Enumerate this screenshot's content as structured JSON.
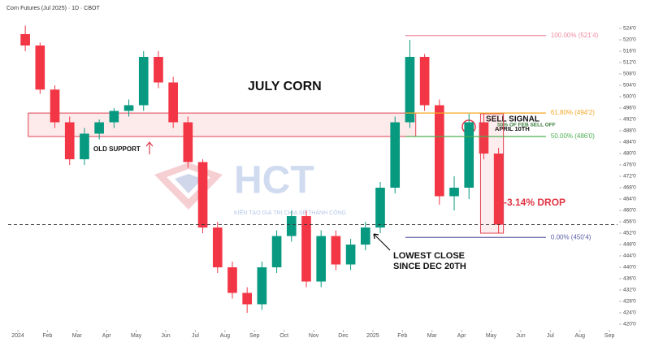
{
  "chart_data": {
    "type": "candlestick",
    "header": "Corn Futures (Jul 2025) · 1D · CBOT",
    "title": "JULY CORN",
    "annotations": {
      "old_support": "OLD SUPPORT",
      "sell_signal": "SELL SIGNAL",
      "sell_date": "APRIL 10TH",
      "fib_note": "50% OF FEB SELL OFF",
      "drop": "-3.14% DROP",
      "lowest_1": "LOWEST CLOSE",
      "lowest_2": "SINCE DEC 20TH"
    },
    "watermark": {
      "brand": "HCT",
      "slogan": "KIẾN TẠO GIÁ TRỊ CHIA SẺ THÀNH CÔNG"
    },
    "x": [
      0.25,
      0.75,
      1.25,
      1.75,
      2.25,
      2.75,
      3.25,
      3.75,
      4.25,
      4.75,
      5.25,
      5.75,
      6.25,
      6.75,
      7.25,
      7.75,
      8.25,
      8.75,
      9.25,
      9.75,
      10.25,
      10.75,
      11.25,
      11.75,
      12.25,
      12.75,
      13.25,
      13.75,
      14.25,
      14.75,
      15.25,
      15.75,
      16.25
    ],
    "open": [
      522,
      518,
      502.5,
      491,
      478,
      487,
      491,
      495,
      497,
      514,
      505,
      491,
      477,
      454,
      440,
      431,
      427,
      440,
      451,
      458,
      435,
      451,
      441,
      448,
      454,
      468,
      491,
      514,
      497,
      465,
      468,
      491,
      480
    ],
    "high": [
      525,
      519,
      504,
      493,
      489,
      492,
      496,
      499,
      516,
      516,
      507,
      493,
      478,
      456,
      442,
      433,
      442,
      453,
      460,
      460,
      453,
      453,
      450,
      456,
      470,
      493,
      520,
      515,
      499,
      472,
      494,
      494,
      482
    ],
    "low": [
      516,
      501,
      489,
      476,
      476,
      485,
      489,
      493,
      495,
      503,
      489,
      475,
      452,
      438,
      429,
      424,
      425,
      438,
      449,
      433,
      433,
      439,
      439,
      446,
      452,
      466,
      489,
      495,
      462,
      460,
      464,
      478,
      452
    ],
    "close": [
      518,
      502.5,
      491,
      478,
      487,
      491,
      495,
      497,
      514,
      505,
      491,
      477,
      454,
      440,
      431,
      427,
      440,
      451,
      458,
      435,
      451,
      441,
      448,
      454,
      468,
      491,
      514,
      497,
      465,
      468,
      491,
      480,
      455
    ],
    "up_color": "#089981",
    "down_color": "#f23645",
    "xlim": [
      -0.33,
      20.27
    ],
    "xticks": [
      {
        "value": 0,
        "label": "2024"
      },
      {
        "value": 1,
        "label": "Feb"
      },
      {
        "value": 2,
        "label": "Mar"
      },
      {
        "value": 3,
        "label": "Apr"
      },
      {
        "value": 4,
        "label": "May"
      },
      {
        "value": 5,
        "label": "Jun"
      },
      {
        "value": 6,
        "label": "Jul"
      },
      {
        "value": 7,
        "label": "Aug"
      },
      {
        "value": 8,
        "label": "Sep"
      },
      {
        "value": 9,
        "label": "Oct"
      },
      {
        "value": 10,
        "label": "Nov"
      },
      {
        "value": 11,
        "label": "Dec"
      },
      {
        "value": 12,
        "label": "2025"
      },
      {
        "value": 13,
        "label": "Feb"
      },
      {
        "value": 14,
        "label": "Mar"
      },
      {
        "value": 15,
        "label": "Apr"
      },
      {
        "value": 16,
        "label": "May"
      },
      {
        "value": 17,
        "label": "Jun"
      },
      {
        "value": 18,
        "label": "Jul"
      },
      {
        "value": 19,
        "label": "Aug"
      },
      {
        "value": 20,
        "label": "Sep"
      }
    ],
    "ylim": [
      418,
      526
    ],
    "yticks": [
      {
        "value": 420,
        "label": "420'0"
      },
      {
        "value": 424,
        "label": "424'0"
      },
      {
        "value": 428,
        "label": "428'0"
      },
      {
        "value": 432,
        "label": "432'0"
      },
      {
        "value": 436,
        "label": "436'0"
      },
      {
        "value": 440,
        "label": "440'0"
      },
      {
        "value": 444,
        "label": "444'0"
      },
      {
        "value": 448,
        "label": "448'0"
      },
      {
        "value": 452,
        "label": "452'0"
      },
      {
        "value": 456,
        "label": "456'0"
      },
      {
        "value": 460,
        "label": "460'0"
      },
      {
        "value": 464,
        "label": "464'0"
      },
      {
        "value": 468,
        "label": "468'0"
      },
      {
        "value": 472,
        "label": "472'0"
      },
      {
        "value": 476,
        "label": "476'0"
      },
      {
        "value": 480,
        "label": "480'0"
      },
      {
        "value": 484,
        "label": "484'0"
      },
      {
        "value": 488,
        "label": "488'0"
      },
      {
        "value": 492,
        "label": "492'0"
      },
      {
        "value": 496,
        "label": "496'0"
      },
      {
        "value": 500,
        "label": "500'0"
      },
      {
        "value": 504,
        "label": "504'0"
      },
      {
        "value": 508,
        "label": "508'0"
      },
      {
        "value": 512,
        "label": "512'0"
      },
      {
        "value": 516,
        "label": "516'0"
      },
      {
        "value": 520,
        "label": "520'0"
      },
      {
        "value": 524,
        "label": "524'0"
      }
    ],
    "fib": [
      {
        "label": "100.00% (521'4)",
        "price": 521.5,
        "color": "#f08ca0"
      },
      {
        "label": "61.80% (494'2)",
        "price": 494.25,
        "color": "#f5a623"
      },
      {
        "label": "50.00% (486'0)",
        "price": 486,
        "color": "#4caf50"
      },
      {
        "label": "0.00% (450'4)",
        "price": 450.5,
        "color": "#5b5ea6"
      }
    ],
    "fib_start": 13.1,
    "fib_end": 17.85,
    "zone_start": 0.35
  }
}
